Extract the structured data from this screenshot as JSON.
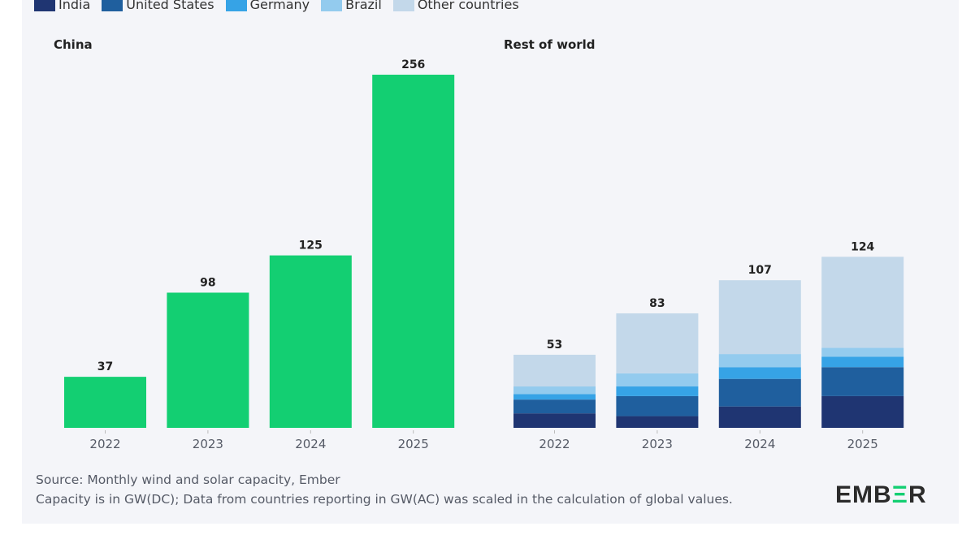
{
  "legend": [
    {
      "name": "India",
      "color": "#1f3572"
    },
    {
      "name": "United States",
      "color": "#1f5f9e"
    },
    {
      "name": "Germany",
      "color": "#36a3e6"
    },
    {
      "name": "Brazil",
      "color": "#93cbee"
    },
    {
      "name": "Other countries",
      "color": "#c3d8ea"
    }
  ],
  "source": "Source: Monthly wind and solar capacity, Ember",
  "note": "Capacity is in GW(DC); Data from countries reporting in GW(AC) was scaled in the calculation of global values.",
  "logo": "EMBER",
  "chart_data": [
    {
      "type": "bar",
      "title": "China",
      "categories": [
        "2022",
        "2023",
        "2024",
        "2025"
      ],
      "values": [
        37,
        98,
        125,
        256
      ],
      "color": "#13cf72",
      "ylim": [
        0,
        260
      ],
      "grid": false
    },
    {
      "type": "bar",
      "stacked": true,
      "title": "Rest of world",
      "categories": [
        "2022",
        "2023",
        "2024",
        "2025"
      ],
      "totals": [
        53,
        83,
        107,
        124
      ],
      "series": [
        {
          "name": "India",
          "values": [
            10.5,
            8.5,
            15.5,
            23
          ]
        },
        {
          "name": "United States",
          "values": [
            10,
            14.5,
            20,
            21
          ]
        },
        {
          "name": "Germany",
          "values": [
            4,
            7,
            8.5,
            7.5
          ]
        },
        {
          "name": "Brazil",
          "values": [
            5.5,
            9.5,
            9.5,
            6.5
          ]
        },
        {
          "name": "Other countries",
          "values": [
            23,
            43.5,
            53.5,
            66
          ]
        }
      ],
      "ylim": [
        0,
        260
      ],
      "grid": false
    }
  ]
}
